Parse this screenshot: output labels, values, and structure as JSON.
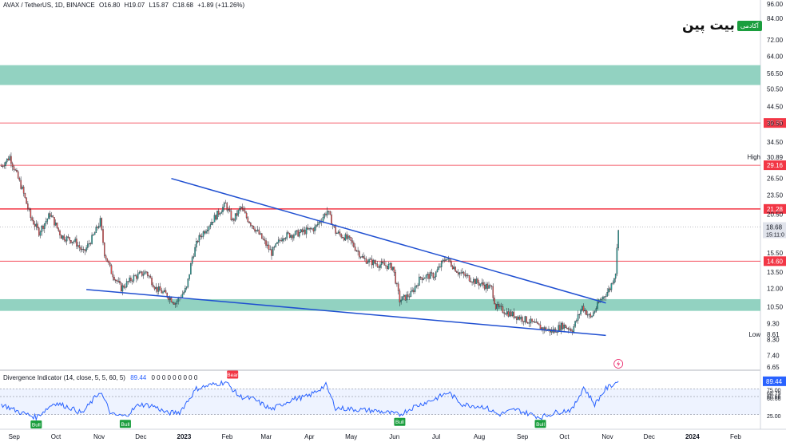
{
  "header": {
    "symbol": "AVAX / TetherUS, 1D, BINANCE",
    "open": "O16.80",
    "high": "H19.07",
    "low": "L15.87",
    "close": "C18.68",
    "change": "+1.89 (+11.26%)"
  },
  "logo": {
    "text": "بیت پین",
    "badge": "آکادمی"
  },
  "indicator": {
    "title": "Divergence Indicator (14, close, 5, 5, 60, 5)",
    "value": "89.44",
    "params": "0 0 0 0 0 0 0 0 0",
    "current_value_label": "89.44",
    "axis_labels": [
      "75.00",
      "68.79",
      "60.66",
      "60.66",
      "25.00"
    ],
    "markers": [
      {
        "text": "Bull",
        "date": "2022-09-22",
        "value": 17
      },
      {
        "text": "Bull",
        "date": "2022-11-25",
        "value": 18
      },
      {
        "text": "Bear",
        "date": "2023-02-10",
        "value": 90
      },
      {
        "text": "Bull",
        "date": "2023-06-10",
        "value": 22
      },
      {
        "text": "Bull",
        "date": "2023-09-19",
        "value": 18
      }
    ]
  },
  "price_axis": {
    "ticks": [
      "96.00",
      "84.00",
      "72.00",
      "64.00",
      "56.50",
      "50.50",
      "44.50",
      "39.50",
      "34.50",
      "30.89",
      "26.50",
      "23.50",
      "20.50",
      "15.50",
      "13.50",
      "12.00",
      "10.50",
      "9.30",
      "8.30",
      "7.40",
      "6.65"
    ],
    "high_label": "High",
    "low_label": "Low",
    "low_value": "8.61",
    "current_price": "18.68",
    "countdown": "15:11:0"
  },
  "time_axis": {
    "labels": [
      "Sep",
      "Oct",
      "Nov",
      "Dec",
      "2023",
      "Feb",
      "Mar",
      "Apr",
      "May",
      "Jun",
      "Jul",
      "Aug",
      "Sep",
      "Oct",
      "Nov",
      "Dec",
      "2024",
      "Feb"
    ]
  },
  "levels": [
    {
      "label": "39.55",
      "price": 39.55,
      "color": "#f23645"
    },
    {
      "label": "29.16",
      "price": 29.16,
      "color": "#f23645"
    },
    {
      "label": "21.28",
      "price": 21.28,
      "color": "#f23645"
    },
    {
      "label": "14.60",
      "price": 14.6,
      "color": "#f23645"
    }
  ],
  "colors": {
    "up": "#26a69a",
    "down": "#ef5350",
    "zone": "#7fcab6",
    "trendline": "#1f4fd1",
    "resistance": "#f23645",
    "indicator_line": "#2962ff",
    "bull": "#1b9e3e",
    "bear": "#f23645"
  },
  "chart_data": {
    "type": "candlestick",
    "symbol": "AVAX / TetherUS",
    "interval": "1D",
    "exchange": "BINANCE",
    "y_scale": "log",
    "ylim": [
      6.65,
      96.0
    ],
    "xlim": [
      "2022-08-27",
      "2024-02-24"
    ],
    "zones": [
      {
        "low": 52.0,
        "high": 60.0
      },
      {
        "low": 10.2,
        "high": 11.1
      }
    ],
    "trendlines": [
      {
        "from": {
          "date": "2022-12-28",
          "price": 26.5
        },
        "to": {
          "date": "2023-11-05",
          "price": 10.8
        }
      },
      {
        "from": {
          "date": "2022-10-28",
          "price": 11.9
        },
        "to": {
          "date": "2023-11-05",
          "price": 8.55
        }
      }
    ],
    "price_path": [
      {
        "date": "2022-08-28",
        "price": 29.0
      },
      {
        "date": "2022-09-03",
        "price": 31.0
      },
      {
        "date": "2022-09-12",
        "price": 24.5
      },
      {
        "date": "2022-09-18",
        "price": 20.0
      },
      {
        "date": "2022-09-24",
        "price": 18.0
      },
      {
        "date": "2022-10-02",
        "price": 20.5
      },
      {
        "date": "2022-10-10",
        "price": 17.5
      },
      {
        "date": "2022-10-20",
        "price": 16.8
      },
      {
        "date": "2022-10-26",
        "price": 15.5
      },
      {
        "date": "2022-11-02",
        "price": 17.5
      },
      {
        "date": "2022-11-07",
        "price": 19.5
      },
      {
        "date": "2022-11-10",
        "price": 15.5
      },
      {
        "date": "2022-11-15",
        "price": 13.5
      },
      {
        "date": "2022-11-22",
        "price": 12.0
      },
      {
        "date": "2022-12-01",
        "price": 13.0
      },
      {
        "date": "2022-12-10",
        "price": 13.5
      },
      {
        "date": "2022-12-17",
        "price": 12.0
      },
      {
        "date": "2022-12-24",
        "price": 11.5
      },
      {
        "date": "2022-12-31",
        "price": 10.8
      },
      {
        "date": "2023-01-08",
        "price": 12.0
      },
      {
        "date": "2023-01-12",
        "price": 15.0
      },
      {
        "date": "2023-01-16",
        "price": 17.0
      },
      {
        "date": "2023-01-22",
        "price": 18.5
      },
      {
        "date": "2023-02-01",
        "price": 21.0
      },
      {
        "date": "2023-02-05",
        "price": 22.0
      },
      {
        "date": "2023-02-10",
        "price": 19.5
      },
      {
        "date": "2023-02-16",
        "price": 21.5
      },
      {
        "date": "2023-02-20",
        "price": 20.0
      },
      {
        "date": "2023-02-28",
        "price": 18.0
      },
      {
        "date": "2023-03-10",
        "price": 15.5
      },
      {
        "date": "2023-03-18",
        "price": 17.5
      },
      {
        "date": "2023-03-28",
        "price": 17.8
      },
      {
        "date": "2023-04-10",
        "price": 18.5
      },
      {
        "date": "2023-04-19",
        "price": 21.0
      },
      {
        "date": "2023-04-25",
        "price": 18.0
      },
      {
        "date": "2023-05-05",
        "price": 17.0
      },
      {
        "date": "2023-05-15",
        "price": 14.8
      },
      {
        "date": "2023-05-25",
        "price": 14.3
      },
      {
        "date": "2023-06-05",
        "price": 14.0
      },
      {
        "date": "2023-06-10",
        "price": 11.0
      },
      {
        "date": "2023-06-18",
        "price": 11.5
      },
      {
        "date": "2023-06-25",
        "price": 13.0
      },
      {
        "date": "2023-07-05",
        "price": 13.2
      },
      {
        "date": "2023-07-13",
        "price": 15.0
      },
      {
        "date": "2023-07-22",
        "price": 13.5
      },
      {
        "date": "2023-08-05",
        "price": 12.5
      },
      {
        "date": "2023-08-15",
        "price": 12.0
      },
      {
        "date": "2023-08-18",
        "price": 10.5
      },
      {
        "date": "2023-08-28",
        "price": 10.0
      },
      {
        "date": "2023-09-10",
        "price": 9.5
      },
      {
        "date": "2023-09-20",
        "price": 9.0
      },
      {
        "date": "2023-09-28",
        "price": 8.8
      },
      {
        "date": "2023-10-05",
        "price": 9.2
      },
      {
        "date": "2023-10-12",
        "price": 8.9
      },
      {
        "date": "2023-10-19",
        "price": 10.5
      },
      {
        "date": "2023-10-25",
        "price": 9.7
      },
      {
        "date": "2023-11-01",
        "price": 11.0
      },
      {
        "date": "2023-11-08",
        "price": 12.0
      },
      {
        "date": "2023-11-12",
        "price": 13.5
      },
      {
        "date": "2023-11-14",
        "price": 18.68
      }
    ],
    "indicator_path": [
      {
        "date": "2022-08-28",
        "value": 45
      },
      {
        "date": "2022-09-10",
        "value": 30
      },
      {
        "date": "2022-09-22",
        "value": 20
      },
      {
        "date": "2022-10-05",
        "value": 48
      },
      {
        "date": "2022-10-15",
        "value": 40
      },
      {
        "date": "2022-10-25",
        "value": 28
      },
      {
        "date": "2022-11-07",
        "value": 70
      },
      {
        "date": "2022-11-15",
        "value": 25
      },
      {
        "date": "2022-11-25",
        "value": 22
      },
      {
        "date": "2022-12-05",
        "value": 45
      },
      {
        "date": "2022-12-15",
        "value": 42
      },
      {
        "date": "2022-12-25",
        "value": 28
      },
      {
        "date": "2023-01-03",
        "value": 30
      },
      {
        "date": "2023-01-15",
        "value": 75
      },
      {
        "date": "2023-01-25",
        "value": 82
      },
      {
        "date": "2023-02-05",
        "value": 88
      },
      {
        "date": "2023-02-15",
        "value": 60
      },
      {
        "date": "2023-02-25",
        "value": 55
      },
      {
        "date": "2023-03-10",
        "value": 35
      },
      {
        "date": "2023-03-25",
        "value": 55
      },
      {
        "date": "2023-04-05",
        "value": 60
      },
      {
        "date": "2023-04-18",
        "value": 82
      },
      {
        "date": "2023-04-25",
        "value": 38
      },
      {
        "date": "2023-05-10",
        "value": 35
      },
      {
        "date": "2023-05-25",
        "value": 32
      },
      {
        "date": "2023-06-10",
        "value": 25
      },
      {
        "date": "2023-06-20",
        "value": 40
      },
      {
        "date": "2023-07-05",
        "value": 55
      },
      {
        "date": "2023-07-15",
        "value": 68
      },
      {
        "date": "2023-07-25",
        "value": 45
      },
      {
        "date": "2023-08-10",
        "value": 40
      },
      {
        "date": "2023-08-20",
        "value": 25
      },
      {
        "date": "2023-09-01",
        "value": 35
      },
      {
        "date": "2023-09-19",
        "value": 20
      },
      {
        "date": "2023-10-01",
        "value": 30
      },
      {
        "date": "2023-10-12",
        "value": 35
      },
      {
        "date": "2023-10-20",
        "value": 78
      },
      {
        "date": "2023-10-28",
        "value": 45
      },
      {
        "date": "2023-11-05",
        "value": 75
      },
      {
        "date": "2023-11-14",
        "value": 89.44
      }
    ]
  }
}
